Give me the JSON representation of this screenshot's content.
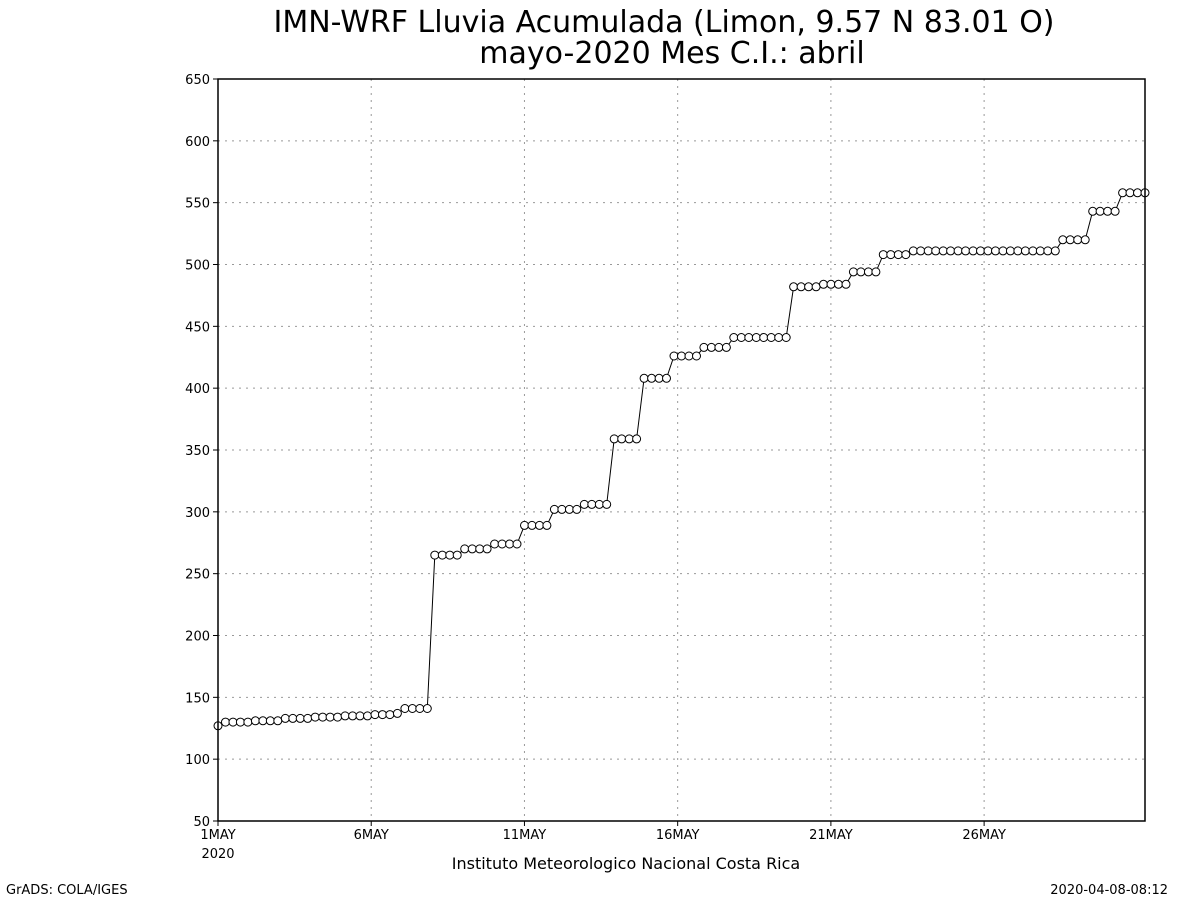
{
  "chart_data": {
    "type": "line",
    "title_line1": "IMN-WRF  Lluvia Acumulada (Limon, 9.57  N 83.01  O)",
    "title_line2": "mayo-2020 Mes C.I.: abril",
    "xlabel": "Instituto Meteorologico Nacional Costa Rica",
    "ylabel": "",
    "ylim": [
      50,
      650
    ],
    "xlim_days": [
      1,
      31.25
    ],
    "y_ticks": [
      50,
      100,
      150,
      200,
      250,
      300,
      350,
      400,
      450,
      500,
      550,
      600,
      650
    ],
    "x_ticks": [
      {
        "day": 1,
        "label": "1MAY"
      },
      {
        "day": 6,
        "label": "6MAY"
      },
      {
        "day": 11,
        "label": "11MAY"
      },
      {
        "day": 16,
        "label": "16MAY"
      },
      {
        "day": 21,
        "label": "21MAY"
      },
      {
        "day": 26,
        "label": "26MAY"
      }
    ],
    "x_year_label": "2020",
    "grid": true,
    "marker": "open-circle",
    "series": [
      {
        "values": [
          127,
          130,
          130,
          130,
          130,
          131,
          131,
          131,
          131,
          133,
          133,
          133,
          133,
          134,
          134,
          134,
          134,
          135,
          135,
          135,
          135,
          136,
          136,
          136,
          137,
          141,
          141,
          141,
          141,
          265,
          265,
          265,
          265,
          270,
          270,
          270,
          270,
          274,
          274,
          274,
          274,
          289,
          289,
          289,
          289,
          302,
          302,
          302,
          302,
          306,
          306,
          306,
          306,
          359,
          359,
          359,
          359,
          408,
          408,
          408,
          408,
          426,
          426,
          426,
          426,
          433,
          433,
          433,
          433,
          441,
          441,
          441,
          441,
          441,
          441,
          441,
          441,
          482,
          482,
          482,
          482,
          484,
          484,
          484,
          484,
          494,
          494,
          494,
          494,
          508,
          508,
          508,
          508,
          511,
          511,
          511,
          511,
          511,
          511,
          511,
          511,
          511,
          511,
          511,
          511,
          511,
          511,
          511,
          511,
          511,
          511,
          511,
          511,
          520,
          520,
          520,
          520,
          543,
          543,
          543,
          543,
          558,
          558,
          558,
          558
        ]
      }
    ]
  },
  "footer": {
    "left": "GrADS: COLA/IGES",
    "right": "2020-04-08-08:12"
  }
}
